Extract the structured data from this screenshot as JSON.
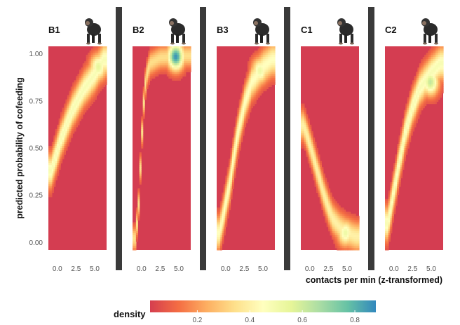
{
  "chart_data": {
    "type": "heatmap",
    "ylabel": "predicted probability of cofeeding",
    "xlabel": "contacts per min (z-transformed)",
    "x_ticks": [
      "0.0",
      "2.5",
      "5.0"
    ],
    "x_tick_values": [
      0,
      2.5,
      5
    ],
    "y_ticks": [
      "0.00",
      "0.25",
      "0.50",
      "0.75",
      "1.00"
    ],
    "y_tick_values": [
      0,
      0.25,
      0.5,
      0.75,
      1
    ],
    "xlim": [
      -1.2,
      6.6
    ],
    "ylim": [
      -0.04,
      1.04
    ],
    "panels": [
      {
        "name": "B1",
        "icon": "chimpanzee-icon",
        "ridge": [
          [
            -0.8,
            0.38
          ],
          [
            0.5,
            0.55
          ],
          [
            2.0,
            0.7
          ],
          [
            3.5,
            0.81
          ],
          [
            5.0,
            0.89
          ],
          [
            6.2,
            0.97
          ]
        ],
        "ridge_density": 0.48,
        "width": 0.085,
        "hotspots": [
          {
            "x": 5.5,
            "y": 0.93,
            "density": 0.55
          }
        ]
      },
      {
        "name": "B2",
        "icon": "chimpanzee-icon",
        "ridge": [
          [
            -0.8,
            0.02
          ],
          [
            -0.4,
            0.2
          ],
          [
            -0.1,
            0.45
          ],
          [
            0.2,
            0.7
          ],
          [
            0.6,
            0.88
          ],
          [
            1.2,
            0.95
          ],
          [
            2.5,
            0.98
          ],
          [
            6.0,
            0.99
          ]
        ],
        "ridge_density": 0.34,
        "width": 0.06,
        "hotspots": [
          {
            "x": 4.6,
            "y": 0.985,
            "density": 0.86
          }
        ]
      },
      {
        "name": "B3",
        "icon": "chimpanzee-icon",
        "ridge": [
          [
            -0.8,
            0.05
          ],
          [
            0.5,
            0.3
          ],
          [
            1.5,
            0.55
          ],
          [
            2.5,
            0.73
          ],
          [
            3.5,
            0.85
          ],
          [
            5.0,
            0.93
          ],
          [
            6.2,
            0.97
          ]
        ],
        "ridge_density": 0.45,
        "width": 0.085,
        "hotspots": [
          {
            "x": 4.6,
            "y": 0.91,
            "density": 0.52
          }
        ]
      },
      {
        "name": "C1",
        "icon": "chimpanzee-icon",
        "ridge": [
          [
            -0.8,
            0.62
          ],
          [
            0.0,
            0.52
          ],
          [
            1.0,
            0.38
          ],
          [
            2.0,
            0.24
          ],
          [
            3.0,
            0.13
          ],
          [
            4.0,
            0.08
          ],
          [
            5.0,
            0.05
          ],
          [
            6.2,
            0.03
          ]
        ],
        "ridge_density": 0.4,
        "width": 0.075,
        "hotspots": [
          {
            "x": 4.8,
            "y": 0.05,
            "density": 0.52
          }
        ]
      },
      {
        "name": "C2",
        "icon": "chimpanzee-icon",
        "ridge": [
          [
            -0.8,
            0.1
          ],
          [
            0.5,
            0.38
          ],
          [
            1.5,
            0.58
          ],
          [
            2.5,
            0.72
          ],
          [
            3.5,
            0.82
          ],
          [
            5.0,
            0.9
          ],
          [
            6.2,
            0.95
          ]
        ],
        "ridge_density": 0.48,
        "width": 0.085,
        "hotspots": [
          {
            "x": 4.9,
            "y": 0.85,
            "density": 0.62
          }
        ]
      }
    ],
    "legend": {
      "title": "density",
      "ticks": [
        "0.2",
        "0.4",
        "0.6",
        "0.8"
      ],
      "tick_values": [
        0.2,
        0.4,
        0.6,
        0.8
      ],
      "range": [
        0.02,
        0.88
      ],
      "placement": "bottom"
    },
    "colormap": [
      "#d53e4f",
      "#f46d43",
      "#fdae61",
      "#fee08b",
      "#ffffbf",
      "#e6f598",
      "#abdda4",
      "#66c2a5",
      "#3288bd"
    ],
    "background_color": "#d43d51",
    "separator_color": "#3a3a3a"
  }
}
